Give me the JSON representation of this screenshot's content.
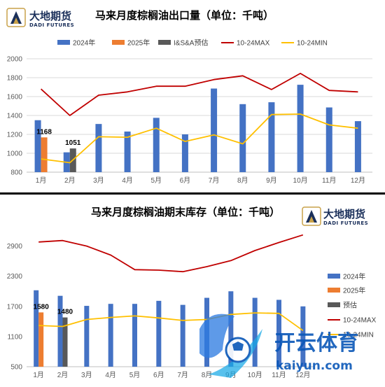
{
  "logo": {
    "cn": "大地期货",
    "en": "DADI FUTURES"
  },
  "watermark": {
    "cn": "开云体育",
    "en": "kaiyun.com"
  },
  "colors": {
    "bar2024": "#4472c4",
    "bar2025": "#ed7d31",
    "barEst": "#595959",
    "max": "#c00000",
    "min": "#ffc000"
  },
  "chart_data": [
    {
      "type": "bar",
      "title": "马来月度棕榈油出口量（单位：千吨）",
      "categories": [
        "1月",
        "2月",
        "3月",
        "4月",
        "5月",
        "6月",
        "7月",
        "8月",
        "9月",
        "10月",
        "11月",
        "12月"
      ],
      "ylim": [
        800,
        2000
      ],
      "yticks": [
        800,
        1000,
        1200,
        1400,
        1600,
        1800,
        2000
      ],
      "legend_position": "top",
      "series": [
        {
          "name": "2024年",
          "kind": "bar",
          "values": [
            1350,
            1010,
            1310,
            1230,
            1375,
            1200,
            1685,
            1520,
            1540,
            1725,
            1485,
            1340
          ]
        },
        {
          "name": "2025年",
          "kind": "bar",
          "values": [
            1168,
            null,
            null,
            null,
            null,
            null,
            null,
            null,
            null,
            null,
            null,
            null
          ]
        },
        {
          "name": "I&S&A预估",
          "kind": "bar",
          "values": [
            null,
            1051,
            null,
            null,
            null,
            null,
            null,
            null,
            null,
            null,
            null,
            null
          ]
        },
        {
          "name": "10-24MAX",
          "kind": "line",
          "values": [
            1680,
            1400,
            1615,
            1650,
            1710,
            1710,
            1780,
            1820,
            1675,
            1845,
            1665,
            1650
          ]
        },
        {
          "name": "10-24MIN",
          "kind": "line",
          "values": [
            940,
            900,
            1175,
            1170,
            1265,
            1125,
            1195,
            1100,
            1410,
            1415,
            1300,
            1265
          ]
        }
      ],
      "data_labels": [
        "1168",
        "1051"
      ]
    },
    {
      "type": "bar",
      "title": "马来月度棕榈油期末库存（单位：千吨）",
      "categories": [
        "1月",
        "2月",
        "3月",
        "4月",
        "5月",
        "6月",
        "7月",
        "8月",
        "9月",
        "10月",
        "11月",
        "12月"
      ],
      "ylim": [
        500,
        3200
      ],
      "yticks": [
        500,
        1100,
        1700,
        2300,
        2900
      ],
      "legend_position": "right",
      "series": [
        {
          "name": "2024年",
          "kind": "bar",
          "values": [
            2020,
            1910,
            1710,
            1750,
            1750,
            1810,
            1730,
            1870,
            2000,
            1870,
            1830,
            1700
          ]
        },
        {
          "name": "2025年",
          "kind": "bar",
          "values": [
            1580,
            null,
            null,
            null,
            null,
            null,
            null,
            null,
            null,
            null,
            null,
            null
          ]
        },
        {
          "name": "预估",
          "kind": "bar",
          "values": [
            null,
            1480,
            null,
            null,
            null,
            null,
            null,
            null,
            null,
            null,
            null,
            null
          ]
        },
        {
          "name": "10-24MAX",
          "kind": "line",
          "values": [
            2980,
            3010,
            2900,
            2720,
            2430,
            2420,
            2390,
            2490,
            2610,
            2810,
            2970,
            3120
          ]
        },
        {
          "name": "10-24MIN",
          "kind": "line",
          "values": [
            1320,
            1300,
            1440,
            1480,
            1510,
            1470,
            1420,
            1440,
            1540,
            1570,
            1560,
            1220
          ]
        }
      ],
      "data_labels": [
        "1580",
        "1480"
      ]
    }
  ]
}
